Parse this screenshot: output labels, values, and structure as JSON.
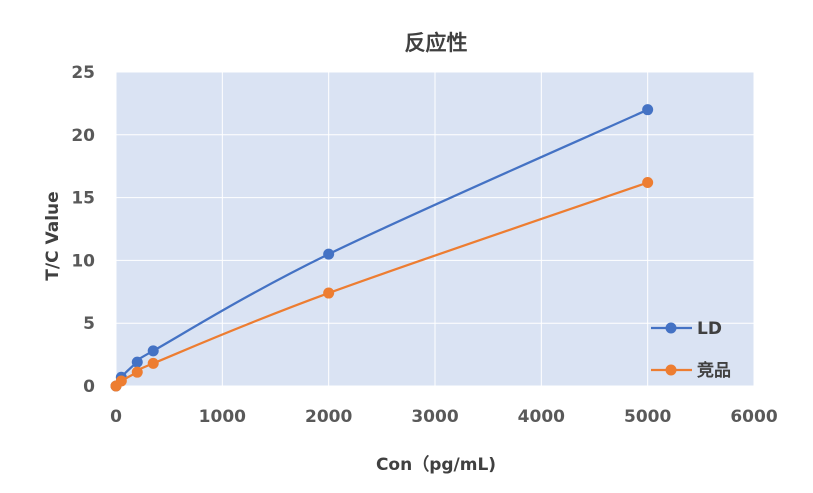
{
  "chart_data": {
    "type": "line",
    "title": "反应性",
    "xlabel": "Con（pg/mL)",
    "ylabel": "T/C Value",
    "xlim": [
      0,
      6000
    ],
    "ylim": [
      0,
      25
    ],
    "xticks": [
      0,
      1000,
      2000,
      3000,
      4000,
      5000,
      6000
    ],
    "yticks": [
      0,
      5,
      10,
      15,
      20,
      25
    ],
    "xtick_labels": [
      "0",
      "1000",
      "2000",
      "3000",
      "4000",
      "5000",
      "6000"
    ],
    "ytick_labels": [
      "0",
      "5",
      "10",
      "15",
      "20",
      "25"
    ],
    "grid": true,
    "legend_position": "bottom-right",
    "plot_background": "#dae3f3",
    "series": [
      {
        "name": "LD",
        "color": "#4472c4",
        "x": [
          0,
          50,
          200,
          350,
          2000,
          5000
        ],
        "y": [
          0,
          0.7,
          1.9,
          2.8,
          10.5,
          22.0
        ]
      },
      {
        "name": "竞品",
        "color": "#ed7d31",
        "x": [
          0,
          50,
          200,
          350,
          2000,
          5000
        ],
        "y": [
          0,
          0.4,
          1.1,
          1.8,
          7.4,
          16.2
        ]
      }
    ]
  }
}
